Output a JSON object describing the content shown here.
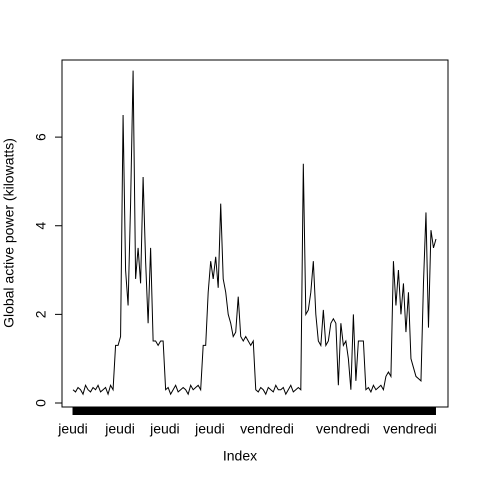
{
  "chart_data": {
    "type": "line",
    "ylabel": "Global active power (kilowatts)",
    "xlabel": "Index",
    "x": [
      1,
      2,
      3,
      4,
      5,
      6,
      7,
      8,
      9,
      10,
      11,
      12,
      13,
      14,
      15,
      16,
      17,
      18,
      19,
      20,
      21,
      22,
      23,
      24,
      25,
      26,
      27,
      28,
      29,
      30,
      31,
      32,
      33,
      34,
      35,
      36,
      37,
      38,
      39,
      40,
      41,
      42,
      43,
      44,
      45,
      46,
      47,
      48,
      49,
      50,
      51,
      52,
      53,
      54,
      55,
      56,
      57,
      58,
      59,
      60,
      61,
      62,
      63,
      64,
      65,
      66,
      67,
      68,
      69,
      70,
      71,
      72,
      73,
      74,
      75,
      76,
      77,
      78,
      79,
      80,
      81,
      82,
      83,
      84,
      85,
      86,
      87,
      88,
      89,
      90,
      91,
      92,
      93,
      94,
      95,
      96,
      97,
      98,
      99,
      100,
      101,
      102,
      103,
      104,
      105,
      106,
      107,
      108,
      109,
      110,
      111,
      112,
      113,
      114,
      115,
      116,
      117,
      118,
      119,
      120,
      121,
      122,
      123,
      124,
      125,
      126,
      127,
      128,
      129,
      130,
      131,
      132,
      133,
      134,
      135,
      136,
      137,
      138,
      139,
      140,
      141,
      142,
      143,
      144,
      145,
      146
    ],
    "values": [
      0.3,
      0.25,
      0.35,
      0.3,
      0.2,
      0.4,
      0.3,
      0.25,
      0.35,
      0.3,
      0.4,
      0.25,
      0.3,
      0.35,
      0.2,
      0.4,
      0.3,
      1.3,
      1.3,
      1.5,
      6.5,
      3.0,
      2.2,
      4.5,
      7.5,
      2.8,
      3.5,
      2.7,
      5.1,
      3.2,
      1.8,
      3.5,
      1.4,
      1.4,
      1.3,
      1.4,
      1.4,
      0.3,
      0.35,
      0.2,
      0.3,
      0.4,
      0.25,
      0.3,
      0.35,
      0.3,
      0.2,
      0.4,
      0.3,
      0.35,
      0.4,
      0.3,
      1.3,
      1.3,
      2.5,
      3.2,
      2.8,
      3.3,
      2.6,
      4.5,
      2.8,
      2.5,
      2.0,
      1.8,
      1.5,
      1.6,
      2.4,
      1.5,
      1.4,
      1.5,
      1.4,
      1.3,
      1.4,
      0.3,
      0.25,
      0.35,
      0.3,
      0.2,
      0.35,
      0.3,
      0.25,
      0.4,
      0.3,
      0.3,
      0.35,
      0.2,
      0.3,
      0.4,
      0.25,
      0.3,
      0.35,
      0.3,
      5.4,
      2.0,
      2.1,
      2.5,
      3.2,
      2.0,
      1.4,
      1.3,
      2.1,
      1.3,
      1.4,
      1.8,
      1.9,
      1.8,
      0.4,
      1.8,
      1.3,
      1.4,
      1.0,
      0.3,
      2.0,
      0.5,
      1.4,
      1.4,
      1.4,
      0.3,
      0.35,
      0.25,
      0.4,
      0.3,
      0.35,
      0.4,
      0.3,
      0.6,
      0.7,
      0.6,
      3.2,
      2.2,
      3.0,
      2.0,
      2.7,
      1.6,
      2.5,
      1.0,
      0.8,
      0.6,
      0.55,
      0.5,
      2.7,
      4.3,
      1.7,
      3.9,
      3.5,
      3.7
    ],
    "color": "#000000",
    "xlim": [
      -3.4,
      150.8
    ],
    "xticks": [
      {
        "value": 1,
        "label": "jeudi"
      },
      {
        "value": 19.8,
        "label": "jeudi"
      },
      {
        "value": 37.7,
        "label": "jeudi"
      },
      {
        "value": 55.7,
        "label": "jeudi"
      },
      {
        "value": 78.5,
        "label": "vendredi"
      },
      {
        "value": 108.8,
        "label": "vendredi"
      },
      {
        "value": 135.6,
        "label": "vendredi"
      }
    ],
    "ylim": [
      -0.09,
      7.74
    ],
    "yticks": [
      0,
      2,
      4,
      6
    ]
  }
}
